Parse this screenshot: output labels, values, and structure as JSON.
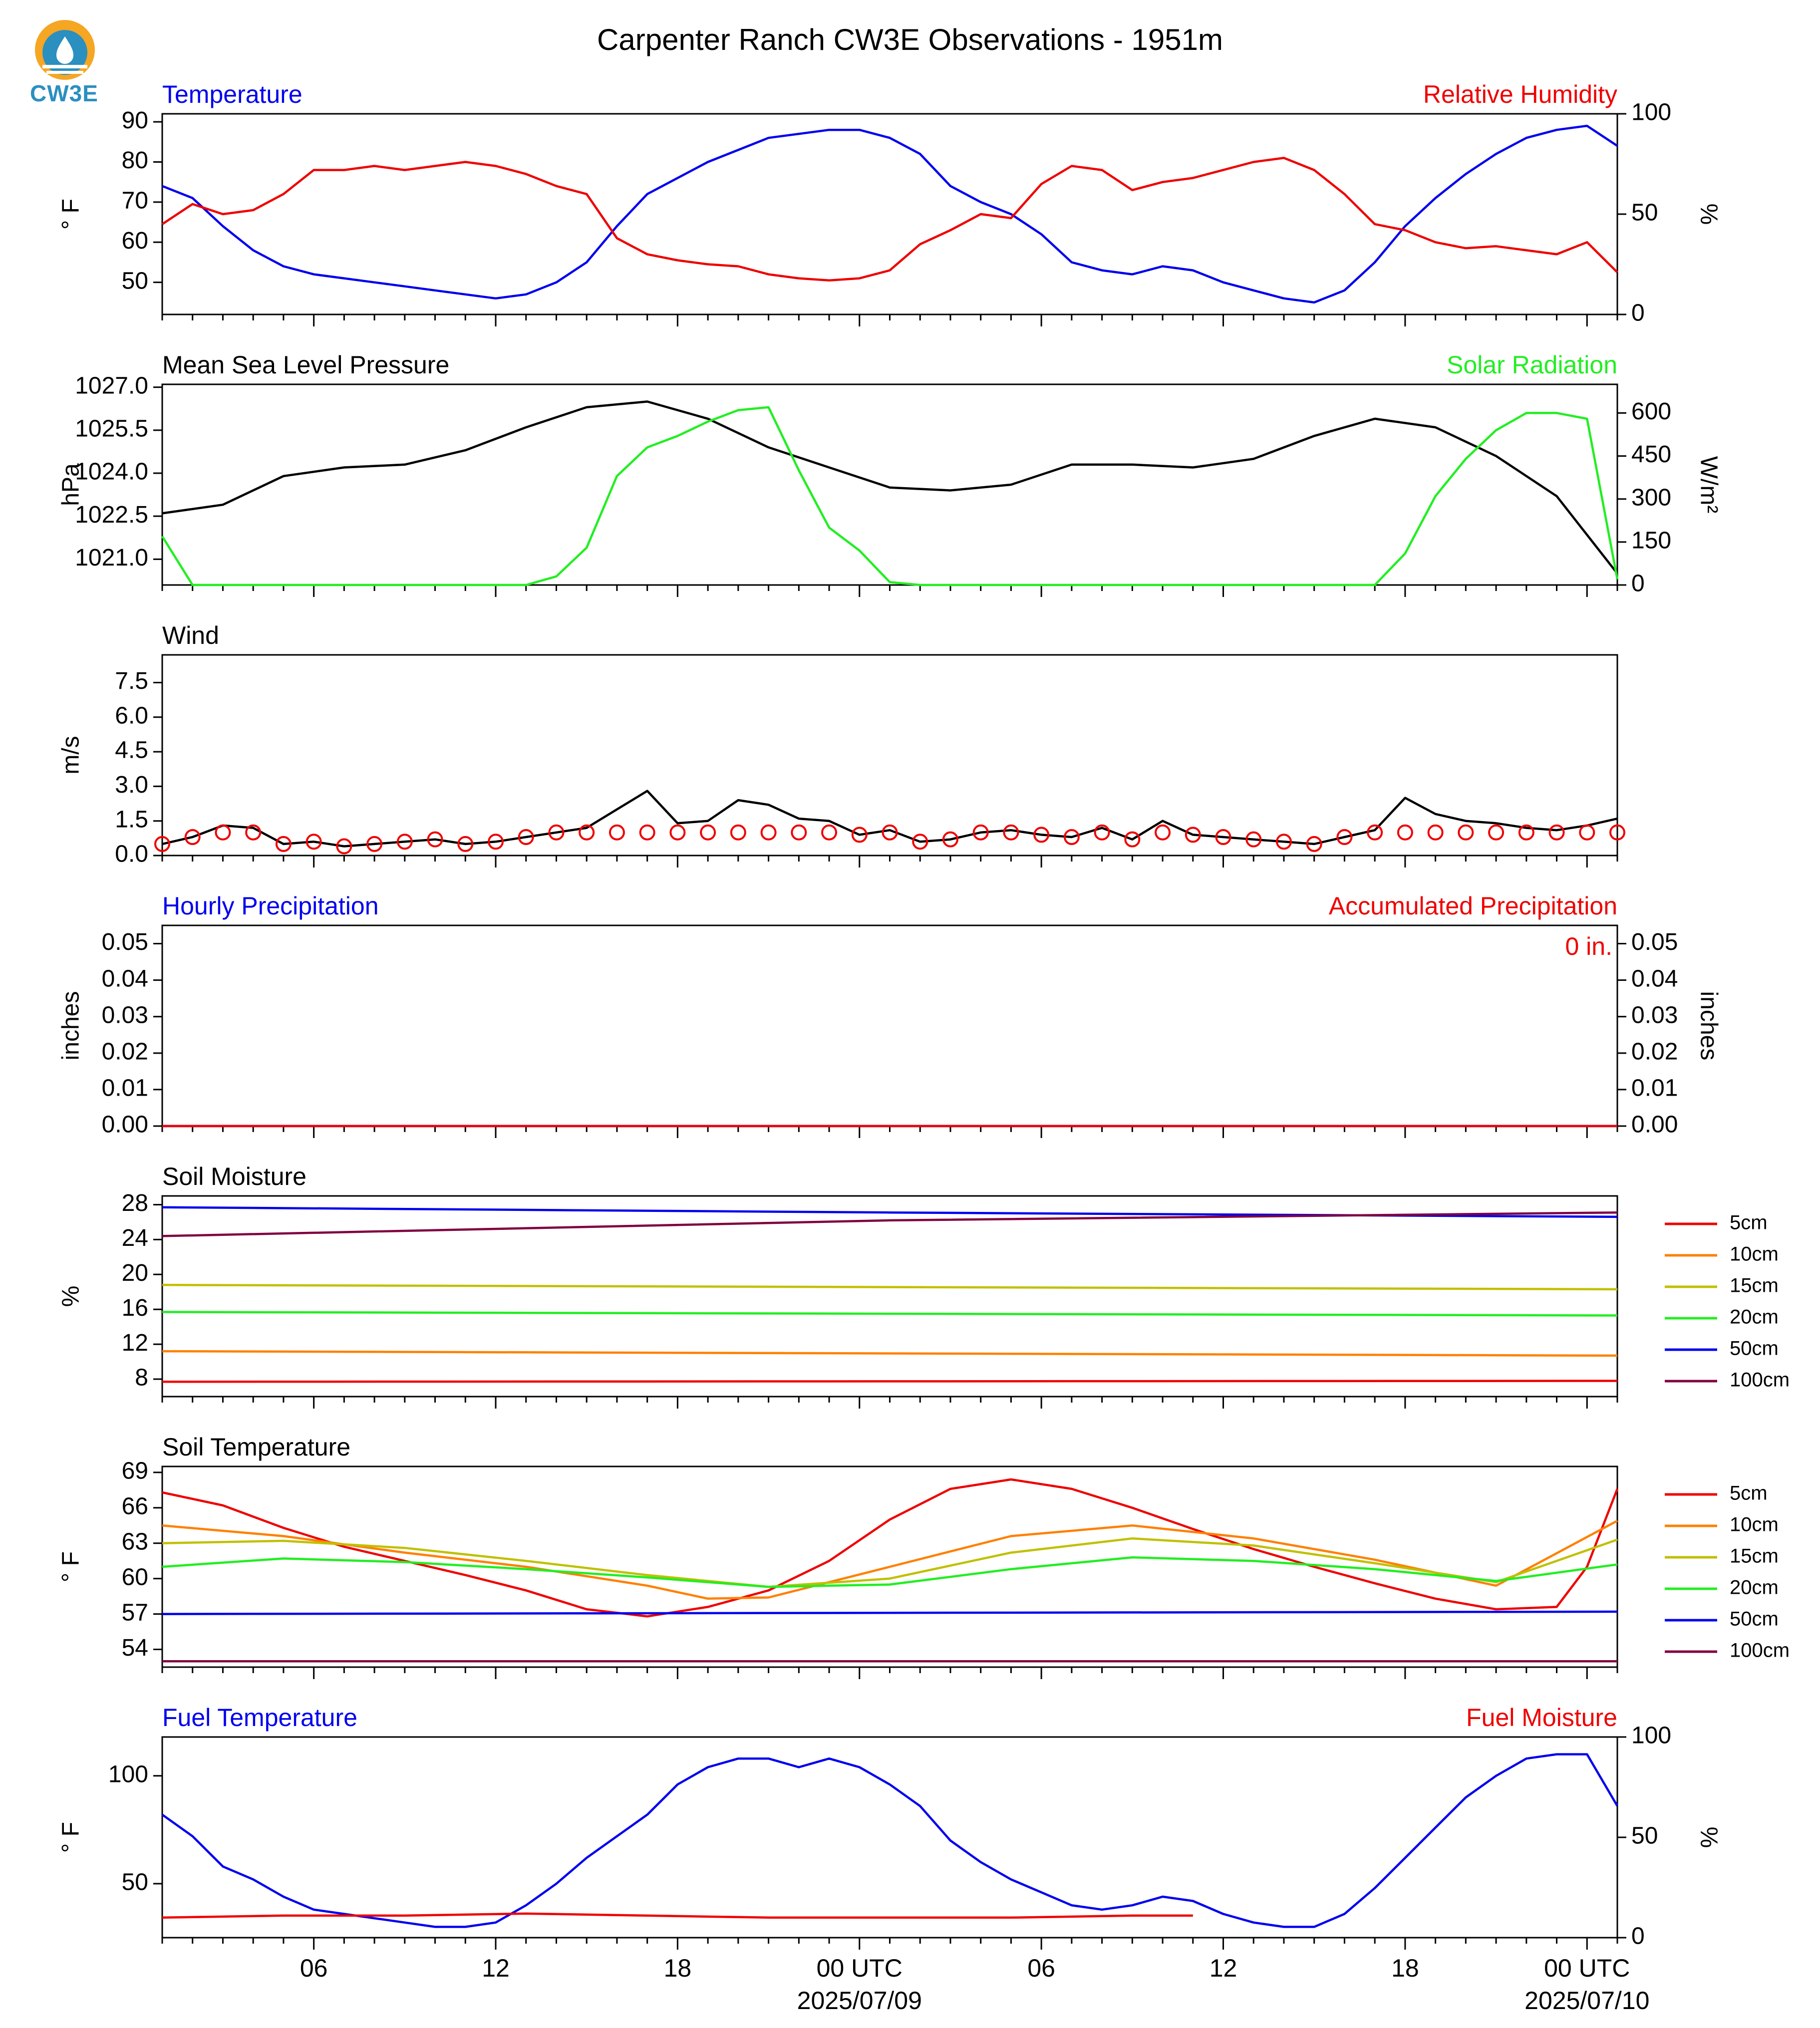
{
  "title": "Carpenter Ranch CW3E Observations - 1951m",
  "logo_text": "CW3E",
  "colors": {
    "blue": "#0000ee",
    "red": "#ee0000",
    "green": "#22ee22",
    "black": "#000000",
    "orange": "#ff8000",
    "olive": "#c0c000",
    "purple": "#800040",
    "logo_blue": "#2b8fc0",
    "logo_orange": "#f5a623"
  },
  "x_axis": {
    "ticks": [
      "06",
      "12",
      "18",
      "00 UTC",
      "06",
      "12",
      "18",
      "00 UTC"
    ],
    "dates": [
      "2025/07/09",
      "2025/07/10"
    ]
  },
  "legend_labels": [
    "5cm",
    "10cm",
    "15cm",
    "20cm",
    "50cm",
    "100cm"
  ],
  "panels": {
    "temp_rh": {
      "left_title": "Temperature",
      "right_title": "Relative Humidity",
      "left_ylabel": "° F",
      "right_ylabel": "%",
      "left_ticks": [
        "50",
        "60",
        "70",
        "80",
        "90"
      ],
      "right_ticks": [
        "0",
        "50",
        "100"
      ]
    },
    "pressure_solar": {
      "left_title": "Mean Sea Level Pressure",
      "right_title": "Solar Radiation",
      "left_ylabel": "hPa",
      "right_ylabel": "W/m²",
      "left_ticks": [
        "1021.0",
        "1022.5",
        "1024.0",
        "1025.5",
        "1027.0"
      ],
      "right_ticks": [
        "0",
        "150",
        "300",
        "450",
        "600"
      ]
    },
    "wind": {
      "left_title": "Wind",
      "left_ylabel": "m/s",
      "left_ticks": [
        "0.0",
        "1.5",
        "3.0",
        "4.5",
        "6.0",
        "7.5"
      ]
    },
    "precip": {
      "left_title": "Hourly Precipitation",
      "right_title": "Accumulated Precipitation",
      "left_ylabel": "inches",
      "right_ylabel": "inches",
      "left_ticks": [
        "0.00",
        "0.01",
        "0.02",
        "0.03",
        "0.04",
        "0.05"
      ],
      "right_ticks": [
        "0.00",
        "0.01",
        "0.02",
        "0.03",
        "0.04",
        "0.05"
      ],
      "annotation": "0 in."
    },
    "soil_moisture": {
      "left_title": "Soil Moisture",
      "left_ylabel": "%",
      "left_ticks": [
        "8",
        "12",
        "16",
        "20",
        "24",
        "28"
      ]
    },
    "soil_temp": {
      "left_title": "Soil Temperature",
      "left_ylabel": "° F",
      "left_ticks": [
        "54",
        "57",
        "60",
        "63",
        "66",
        "69"
      ]
    },
    "fuel": {
      "left_title": "Fuel Temperature",
      "right_title": "Fuel Moisture",
      "left_ylabel": "° F",
      "right_ylabel": "%",
      "left_ticks": [
        "50",
        "100"
      ],
      "right_ticks": [
        "0",
        "50",
        "100"
      ]
    }
  },
  "chart_data": [
    {
      "type": "line",
      "x_unit": "hours since 2025/07/08 00 UTC",
      "series": [
        {
          "name": "Temperature",
          "axis": "left",
          "unit": "° F",
          "color": "#0000ee",
          "x": [
            1,
            2,
            3,
            4,
            5,
            6,
            7,
            8,
            9,
            10,
            11,
            12,
            13,
            14,
            15,
            16,
            17,
            18,
            19,
            20,
            21,
            22,
            23,
            24,
            25,
            26,
            27,
            28,
            29,
            30,
            31,
            32,
            33,
            34,
            35,
            36,
            37,
            38,
            39,
            40,
            41,
            42,
            43,
            44,
            45,
            46,
            47,
            48,
            49
          ],
          "y": [
            74,
            71,
            64,
            58,
            54,
            52,
            51,
            50,
            49,
            48,
            47,
            46,
            47,
            50,
            55,
            64,
            72,
            76,
            80,
            83,
            86,
            87,
            88,
            88,
            86,
            82,
            74,
            70,
            67,
            62,
            55,
            53,
            52,
            54,
            53,
            50,
            48,
            46,
            45,
            48,
            55,
            64,
            71,
            77,
            82,
            86,
            88,
            89,
            84
          ]
        },
        {
          "name": "Relative Humidity",
          "axis": "right",
          "unit": "%",
          "color": "#ee0000",
          "x": [
            1,
            2,
            3,
            4,
            5,
            6,
            7,
            8,
            9,
            10,
            11,
            12,
            13,
            14,
            15,
            16,
            17,
            18,
            19,
            20,
            21,
            22,
            23,
            24,
            25,
            26,
            27,
            28,
            29,
            30,
            31,
            32,
            33,
            34,
            35,
            36,
            37,
            38,
            39,
            40,
            41,
            42,
            43,
            44,
            45,
            46,
            47,
            48,
            49
          ],
          "y": [
            45,
            55,
            50,
            52,
            60,
            72,
            72,
            74,
            72,
            74,
            76,
            74,
            70,
            64,
            60,
            38,
            30,
            27,
            25,
            24,
            20,
            18,
            17,
            18,
            22,
            35,
            42,
            50,
            48,
            65,
            74,
            72,
            62,
            66,
            68,
            72,
            76,
            78,
            72,
            60,
            45,
            42,
            36,
            33,
            34,
            32,
            30,
            36,
            21
          ]
        }
      ]
    },
    {
      "type": "line",
      "x_unit": "hours since 2025/07/08 00 UTC",
      "series": [
        {
          "name": "Mean Sea Level Pressure",
          "axis": "left",
          "unit": "hPa",
          "color": "#000000",
          "x": [
            1,
            3,
            5,
            7,
            9,
            11,
            13,
            15,
            17,
            19,
            21,
            23,
            25,
            27,
            29,
            31,
            33,
            35,
            37,
            39,
            41,
            43,
            45,
            47,
            49
          ],
          "y": [
            1022.6,
            1022.9,
            1023.9,
            1024.2,
            1024.3,
            1024.8,
            1025.6,
            1026.3,
            1026.5,
            1025.9,
            1024.9,
            1024.2,
            1023.5,
            1023.4,
            1023.6,
            1024.3,
            1024.3,
            1024.2,
            1024.5,
            1025.3,
            1025.9,
            1025.6,
            1024.6,
            1023.2,
            1020.5
          ]
        },
        {
          "name": "Solar Radiation",
          "axis": "right",
          "unit": "W/m²",
          "color": "#22ee22",
          "x": [
            1,
            2,
            3,
            4,
            5,
            6,
            7,
            8,
            9,
            10,
            11,
            12,
            13,
            14,
            15,
            16,
            17,
            18,
            19,
            20,
            21,
            22,
            23,
            24,
            25,
            26,
            27,
            28,
            29,
            30,
            31,
            32,
            33,
            34,
            35,
            36,
            37,
            38,
            39,
            40,
            41,
            42,
            43,
            44,
            45,
            46,
            47,
            48,
            49
          ],
          "y": [
            170,
            0,
            0,
            0,
            0,
            0,
            0,
            0,
            0,
            0,
            0,
            0,
            0,
            30,
            130,
            380,
            480,
            520,
            570,
            610,
            620,
            400,
            200,
            120,
            10,
            0,
            0,
            0,
            0,
            0,
            0,
            0,
            0,
            0,
            0,
            0,
            0,
            0,
            0,
            0,
            0,
            110,
            310,
            440,
            540,
            600,
            600,
            580,
            20
          ]
        }
      ]
    },
    {
      "type": "line",
      "x_unit": "hours since 2025/07/08 00 UTC",
      "series": [
        {
          "name": "Wind",
          "unit": "m/s",
          "color": "#000000",
          "x": [
            1,
            2,
            3,
            4,
            5,
            6,
            7,
            8,
            9,
            10,
            11,
            12,
            13,
            14,
            15,
            16,
            17,
            18,
            19,
            20,
            21,
            22,
            23,
            24,
            25,
            26,
            27,
            28,
            29,
            30,
            31,
            32,
            33,
            34,
            35,
            36,
            37,
            38,
            39,
            40,
            41,
            42,
            43,
            44,
            45,
            46,
            47,
            48,
            49
          ],
          "y": [
            0.5,
            0.8,
            1.3,
            1.2,
            0.5,
            0.6,
            0.4,
            0.5,
            0.6,
            0.7,
            0.5,
            0.6,
            0.8,
            1.0,
            1.2,
            2.0,
            2.8,
            1.4,
            1.5,
            2.4,
            2.2,
            1.6,
            1.5,
            0.9,
            1.1,
            0.6,
            0.7,
            1.0,
            1.1,
            0.9,
            0.8,
            1.2,
            0.7,
            1.5,
            0.9,
            0.8,
            0.7,
            0.6,
            0.5,
            0.8,
            1.1,
            2.5,
            1.8,
            1.5,
            1.4,
            1.2,
            1.1,
            1.3,
            1.6
          ]
        }
      ]
    },
    {
      "type": "line",
      "x_unit": "hours since 2025/07/08 00 UTC",
      "series": [
        {
          "name": "Hourly Precipitation",
          "axis": "left",
          "unit": "inches",
          "color": "#0000ee",
          "x": [
            1,
            49
          ],
          "y": [
            0,
            0
          ]
        },
        {
          "name": "Accumulated Precipitation",
          "axis": "right",
          "unit": "inches",
          "color": "#ee0000",
          "x": [
            1,
            49
          ],
          "y": [
            0,
            0
          ]
        }
      ]
    },
    {
      "type": "line",
      "x_unit": "hours since 2025/07/08 00 UTC",
      "series": [
        {
          "name": "5cm",
          "color": "#ee0000",
          "x": [
            1,
            49
          ],
          "y": [
            7.7,
            7.8
          ]
        },
        {
          "name": "10cm",
          "color": "#ff8000",
          "x": [
            1,
            49
          ],
          "y": [
            11.2,
            10.7
          ]
        },
        {
          "name": "15cm",
          "color": "#c0c000",
          "x": [
            1,
            49
          ],
          "y": [
            18.8,
            18.3
          ]
        },
        {
          "name": "20cm",
          "color": "#22ee22",
          "x": [
            1,
            49
          ],
          "y": [
            15.7,
            15.3
          ]
        },
        {
          "name": "50cm",
          "color": "#0000ee",
          "x": [
            1,
            25,
            49
          ],
          "y": [
            27.7,
            27.1,
            26.6
          ]
        },
        {
          "name": "100cm",
          "color": "#800040",
          "x": [
            1,
            25,
            49
          ],
          "y": [
            24.4,
            26.2,
            27.1
          ]
        }
      ]
    },
    {
      "type": "line",
      "x_unit": "hours since 2025/07/08 00 UTC",
      "series": [
        {
          "name": "5cm",
          "color": "#ee0000",
          "x": [
            1,
            3,
            5,
            7,
            9,
            11,
            13,
            15,
            17,
            19,
            21,
            23,
            25,
            27,
            29,
            31,
            33,
            35,
            37,
            39,
            41,
            43,
            45,
            47,
            48,
            49
          ],
          "y": [
            67.3,
            66.2,
            64.3,
            62.7,
            61.5,
            60.3,
            59.0,
            57.4,
            56.8,
            57.6,
            59.0,
            61.5,
            65.0,
            67.6,
            68.4,
            67.6,
            66.0,
            64.2,
            62.5,
            61.0,
            59.6,
            58.3,
            57.4,
            57.6,
            61.0,
            67.6
          ]
        },
        {
          "name": "10cm",
          "color": "#ff8000",
          "x": [
            1,
            5,
            9,
            13,
            17,
            19,
            21,
            25,
            29,
            33,
            37,
            41,
            45,
            49
          ],
          "y": [
            64.5,
            63.6,
            62.2,
            61.0,
            59.4,
            58.3,
            58.4,
            61.0,
            63.6,
            64.5,
            63.4,
            61.6,
            59.4,
            64.9
          ]
        },
        {
          "name": "15cm",
          "color": "#c0c000",
          "x": [
            1,
            5,
            9,
            13,
            17,
            21,
            25,
            29,
            33,
            37,
            41,
            45,
            49
          ],
          "y": [
            63.0,
            63.2,
            62.6,
            61.5,
            60.3,
            59.3,
            60.0,
            62.2,
            63.4,
            62.8,
            61.3,
            59.7,
            63.3
          ]
        },
        {
          "name": "20cm",
          "color": "#22ee22",
          "x": [
            1,
            5,
            9,
            13,
            17,
            21,
            25,
            29,
            33,
            37,
            41,
            45,
            49
          ],
          "y": [
            61.0,
            61.7,
            61.4,
            60.8,
            60.1,
            59.3,
            59.5,
            60.8,
            61.8,
            61.5,
            60.8,
            59.8,
            61.2
          ]
        },
        {
          "name": "50cm",
          "color": "#0000ee",
          "x": [
            1,
            49
          ],
          "y": [
            57.0,
            57.2
          ]
        },
        {
          "name": "100cm",
          "color": "#800040",
          "x": [
            1,
            49
          ],
          "y": [
            53.0,
            53.0
          ]
        }
      ]
    },
    {
      "type": "line",
      "x_unit": "hours since 2025/07/08 00 UTC",
      "series": [
        {
          "name": "Fuel Temperature",
          "axis": "left",
          "unit": "° F",
          "color": "#0000ee",
          "x": [
            1,
            2,
            3,
            4,
            5,
            6,
            7,
            8,
            9,
            10,
            11,
            12,
            13,
            14,
            15,
            16,
            17,
            18,
            19,
            20,
            21,
            22,
            23,
            24,
            25,
            26,
            27,
            28,
            29,
            30,
            31,
            32,
            33,
            34,
            35,
            36,
            37,
            38,
            39,
            40,
            41,
            42,
            43,
            44,
            45,
            46,
            47,
            48,
            49
          ],
          "y": [
            82,
            72,
            58,
            52,
            44,
            38,
            36,
            34,
            32,
            30,
            30,
            32,
            40,
            50,
            62,
            72,
            82,
            96,
            104,
            108,
            108,
            104,
            108,
            104,
            96,
            86,
            70,
            60,
            52,
            46,
            40,
            38,
            40,
            44,
            42,
            36,
            32,
            30,
            30,
            36,
            48,
            62,
            76,
            90,
            100,
            108,
            110,
            110,
            86
          ]
        },
        {
          "name": "Fuel Moisture",
          "axis": "right",
          "unit": "%",
          "color": "#ee0000",
          "x": [
            1,
            5,
            9,
            13,
            17,
            21,
            25,
            29,
            33,
            35
          ],
          "y": [
            10,
            11,
            11,
            12,
            11,
            10,
            10,
            10,
            11,
            11
          ]
        }
      ]
    }
  ]
}
